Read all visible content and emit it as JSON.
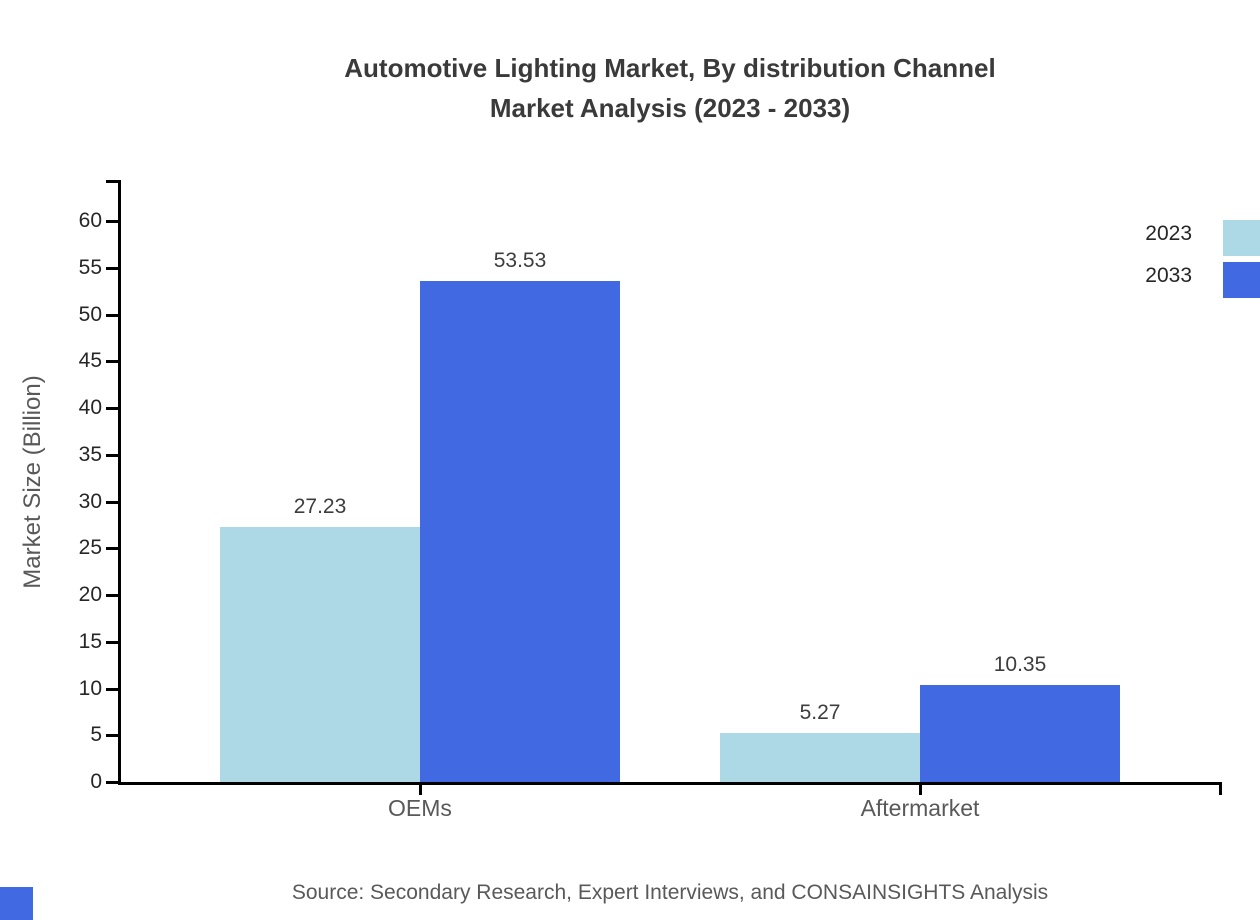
{
  "title": {
    "line1": "Automotive Lighting Market, By distribution Channel",
    "line2": "Market Analysis (2023 - 2033)"
  },
  "y_axis": {
    "label": "Market Size (Billion)",
    "tick_min": 0,
    "tick_max": 60,
    "tick_step": 5
  },
  "legend": {
    "position": "top-right",
    "items": [
      {
        "label": "2023",
        "color": "#ADD8E6"
      },
      {
        "label": "2033",
        "color": "#4169E1"
      }
    ]
  },
  "source_note": "Source: Secondary Research, Expert Interviews, and CONSAINSIGHTS Analysis",
  "branding": {
    "corner_logo_color": "#4169E1"
  },
  "chart_data": {
    "type": "bar",
    "categories": [
      "OEMs",
      "Aftermarket"
    ],
    "series": [
      {
        "name": "2023",
        "color": "#ADD8E6",
        "values": [
          27.23,
          5.27
        ]
      },
      {
        "name": "2033",
        "color": "#4169E1",
        "values": [
          53.53,
          10.35
        ]
      }
    ],
    "title": "Automotive Lighting Market, By distribution Channel Market Analysis (2023 - 2033)",
    "xlabel": "",
    "ylabel": "Market Size (Billion)",
    "ylim": [
      0,
      64.4
    ],
    "ytick_step": 5,
    "value_labels": true,
    "grid": false,
    "legend_position": "top-right"
  }
}
